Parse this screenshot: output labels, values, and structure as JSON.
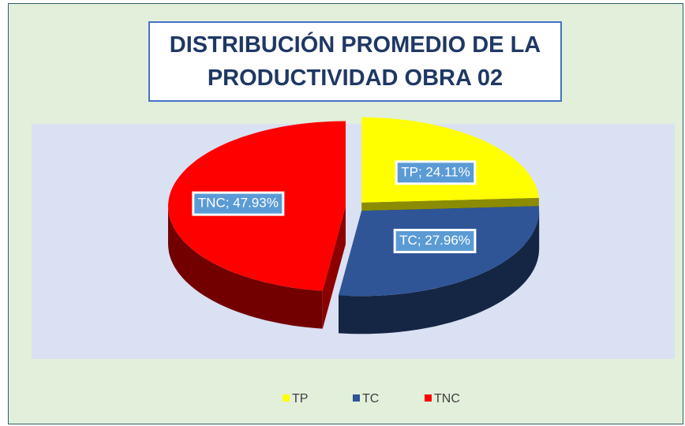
{
  "chart_data": {
    "type": "pie3d",
    "title": "DISTRIBUCIÓN PROMEDIO DE LA PRODUCTIVIDAD OBRA 02",
    "categories": [
      "TP",
      "TC",
      "TNC"
    ],
    "values": [
      24.11,
      27.96,
      47.93
    ],
    "value_labels": [
      "TP; 24.11%",
      "TC; 27.96%",
      "TNC; 47.93%"
    ],
    "colors": [
      "#ffff00",
      "#2f5597",
      "#ff0000"
    ],
    "legend": "bottom"
  }
}
